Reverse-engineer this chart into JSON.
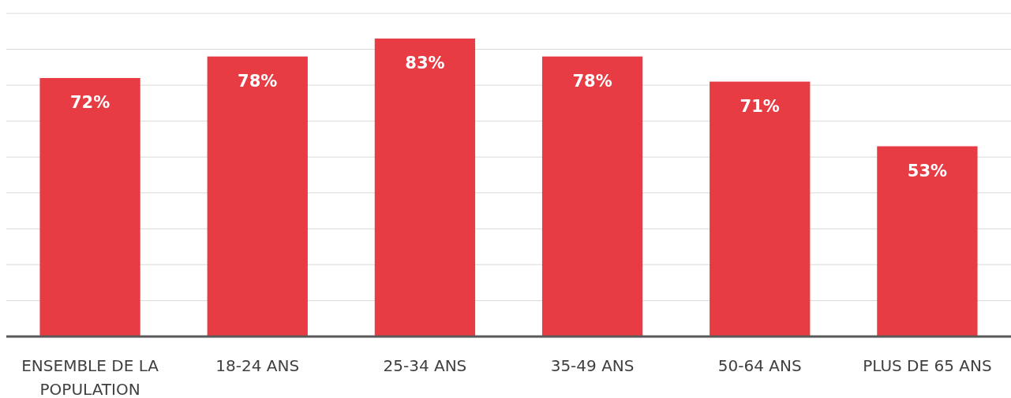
{
  "chart_data": {
    "type": "bar",
    "categories": [
      "ENSEMBLE DE LA POPULATION",
      "18-24 ANS",
      "25-34 ANS",
      "35-49 ANS",
      "50-64 ANS",
      "PLUS DE 65 ANS"
    ],
    "values": [
      72,
      78,
      83,
      78,
      71,
      53
    ],
    "value_labels": [
      "72%",
      "78%",
      "83%",
      "78%",
      "71%",
      "53%"
    ],
    "color": "#e83c44",
    "ylim": [
      0,
      90
    ],
    "yticks": [
      {
        "value": 0,
        "label": null
      },
      {
        "value": 10,
        "label": null
      },
      {
        "value": 20,
        "label": null
      },
      {
        "value": 30,
        "label": null
      },
      {
        "value": 40,
        "label": null
      },
      {
        "value": 50,
        "label": null
      },
      {
        "value": 60,
        "label": null
      },
      {
        "value": 70,
        "label": null
      },
      {
        "value": 80,
        "label": null
      },
      {
        "value": 90,
        "label": null
      }
    ],
    "grid": "y",
    "tick_labels": "x"
  }
}
